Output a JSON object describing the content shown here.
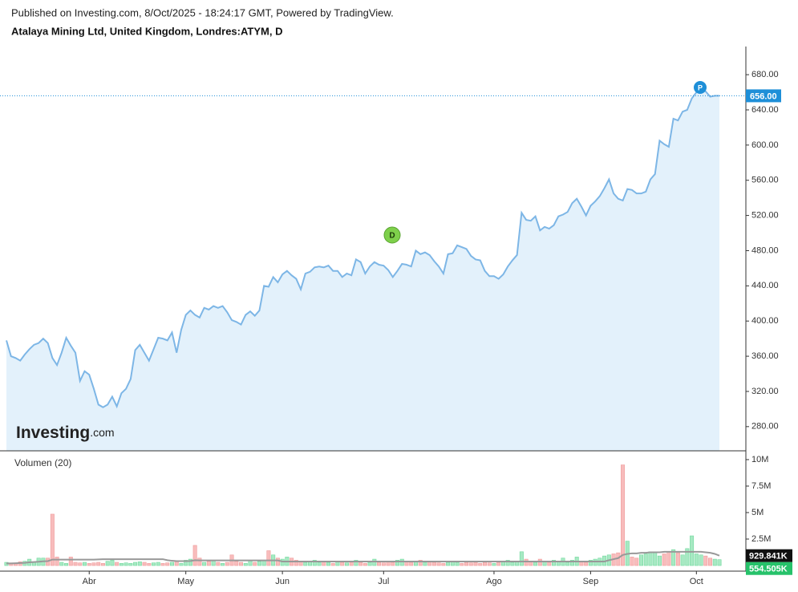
{
  "header": {
    "published": "Published on Investing.com, 8/Oct/2025 - 18:24:17 GMT, Powered by TradingView.",
    "title": "Atalaya Mining Ltd, United Kingdom, Londres:ATYM, D"
  },
  "logo": {
    "brand": "Investing",
    "suffix": ".com"
  },
  "markers": [
    {
      "label": "D",
      "color": "#7ed04b"
    },
    {
      "label": "P",
      "color": "#1e8fd8"
    }
  ],
  "chart_data": {
    "type": "area",
    "color": "#7db6e6",
    "fill": "#e3f1fb",
    "categories": [
      null,
      null,
      null,
      null,
      null,
      null,
      null,
      null,
      null,
      null,
      null,
      null,
      null,
      null,
      null,
      null,
      null,
      null,
      "Abr",
      null,
      null,
      null,
      null,
      null,
      null,
      null,
      null,
      null,
      null,
      null,
      null,
      null,
      null,
      null,
      null,
      null,
      null,
      null,
      null,
      "May",
      null,
      null,
      null,
      null,
      null,
      null,
      null,
      null,
      null,
      null,
      null,
      null,
      null,
      null,
      null,
      null,
      null,
      null,
      null,
      null,
      "Jun",
      null,
      null,
      null,
      null,
      null,
      null,
      null,
      null,
      null,
      null,
      null,
      null,
      null,
      null,
      null,
      null,
      null,
      null,
      null,
      null,
      null,
      "Jul",
      null,
      null,
      null,
      null,
      null,
      null,
      null,
      null,
      null,
      null,
      null,
      null,
      null,
      null,
      null,
      null,
      null,
      null,
      null,
      null,
      null,
      null,
      null,
      "Ago",
      null,
      null,
      null,
      null,
      null,
      null,
      null,
      null,
      null,
      null,
      null,
      null,
      null,
      null,
      null,
      null,
      null,
      null,
      null,
      null,
      "Sep",
      null,
      null,
      null,
      null,
      null,
      null,
      null,
      null,
      null,
      null,
      null,
      null,
      null,
      null,
      null,
      null,
      null,
      null,
      null,
      null,
      null,
      null,
      "Oct",
      null,
      null,
      null,
      null,
      null
    ],
    "values": [
      378,
      360,
      358,
      355,
      362,
      368,
      373,
      375,
      380,
      375,
      358,
      350,
      364,
      381,
      372,
      364,
      332,
      343,
      339,
      323,
      305,
      302,
      305,
      314,
      303,
      318,
      323,
      334,
      367,
      373,
      364,
      355,
      368,
      381,
      380,
      378,
      387,
      364,
      390,
      407,
      412,
      407,
      404,
      415,
      413,
      417,
      415,
      417,
      410,
      401,
      399,
      396,
      407,
      411,
      406,
      412,
      440,
      439,
      450,
      444,
      453,
      457,
      452,
      448,
      436,
      454,
      456,
      461,
      462,
      461,
      463,
      457,
      457,
      450,
      454,
      452,
      470,
      467,
      454,
      462,
      467,
      464,
      463,
      458,
      450,
      457,
      465,
      464,
      462,
      480,
      476,
      478,
      475,
      468,
      462,
      454,
      476,
      477,
      486,
      484,
      482,
      474,
      470,
      469,
      457,
      451,
      451,
      448,
      453,
      462,
      469,
      475,
      523,
      515,
      514,
      519,
      503,
      507,
      505,
      509,
      519,
      521,
      524,
      534,
      539,
      530,
      520,
      531,
      536,
      542,
      551,
      561,
      545,
      539,
      537,
      550,
      549,
      545,
      545,
      547,
      561,
      567,
      605,
      601,
      598,
      630,
      628,
      638,
      640,
      653,
      660,
      664,
      661,
      655,
      656,
      656
    ],
    "last_label": "656.00",
    "last_color": "#1e8fd8",
    "ylim": [
      252.5,
      712
    ],
    "yticks": [
      {
        "value": 680,
        "label": "680.00"
      },
      {
        "value": 640,
        "label": "640.00"
      },
      {
        "value": 600,
        "label": "600.00"
      },
      {
        "value": 560,
        "label": "560.00"
      },
      {
        "value": 520,
        "label": "520.00"
      },
      {
        "value": 480,
        "label": "480.00"
      },
      {
        "value": 440,
        "label": "440.00"
      },
      {
        "value": 400,
        "label": "400.00"
      },
      {
        "value": 360,
        "label": "360.00"
      },
      {
        "value": 320,
        "label": "320.00"
      },
      {
        "value": 280,
        "label": "280.00"
      }
    ],
    "volume": {
      "title": "Volumen (20)",
      "up_color": "#a7e9c3",
      "down_color": "#f8bcbc",
      "values": [
        300000,
        250000,
        200000,
        350000,
        400000,
        600000,
        300000,
        700000,
        700000,
        700000,
        4850000,
        800000,
        300000,
        200000,
        800000,
        300000,
        250000,
        300000,
        200000,
        250000,
        300000,
        200000,
        400000,
        500000,
        300000,
        200000,
        250000,
        200000,
        300000,
        350000,
        300000,
        200000,
        250000,
        300000,
        200000,
        250000,
        300000,
        400000,
        200000,
        500000,
        600000,
        1900000,
        700000,
        300000,
        400000,
        500000,
        300000,
        200000,
        300000,
        1000000,
        400000,
        300000,
        200000,
        500000,
        300000,
        400000,
        500000,
        1400000,
        1000000,
        700000,
        600000,
        800000,
        700000,
        500000,
        400000,
        300000,
        400000,
        500000,
        300000,
        400000,
        300000,
        200000,
        400000,
        300000,
        250000,
        300000,
        500000,
        300000,
        200000,
        300000,
        600000,
        300000,
        250000,
        400000,
        300000,
        500000,
        600000,
        400000,
        300000,
        400000,
        500000,
        300000,
        400000,
        300000,
        250000,
        200000,
        300000,
        400000,
        300000,
        200000,
        300000,
        250000,
        300000,
        200000,
        300000,
        250000,
        200000,
        300000,
        400000,
        500000,
        300000,
        400000,
        1300000,
        600000,
        400000,
        300000,
        600000,
        400000,
        300000,
        500000,
        400000,
        700000,
        300000,
        500000,
        800000,
        400000,
        300000,
        500000,
        600000,
        700000,
        900000,
        1000000,
        1100000,
        1200000,
        9500000,
        2300000,
        800000,
        700000,
        1000000,
        1100000,
        1300000,
        1200000,
        900000,
        1100000,
        1300000,
        1500000,
        1200000,
        1000000,
        1600000,
        2800000,
        1100000,
        1000000,
        900000,
        700000,
        600000,
        554505
      ],
      "last_label": "554.505K",
      "last_color": "#26c26a",
      "ma": {
        "color": "#999999",
        "label_color": "#111111",
        "last_label": "929.841K",
        "values": [
          200000,
          200000,
          220000,
          240000,
          260000,
          300000,
          330000,
          360000,
          400000,
          420000,
          560000,
          560000,
          560000,
          560000,
          560000,
          560000,
          560000,
          560000,
          560000,
          560000,
          580000,
          600000,
          600000,
          600000,
          600000,
          600000,
          600000,
          600000,
          600000,
          600000,
          600000,
          600000,
          600000,
          600000,
          600000,
          500000,
          450000,
          420000,
          420000,
          420000,
          430000,
          500000,
          480000,
          480000,
          480000,
          480000,
          480000,
          480000,
          480000,
          480000,
          480000,
          480000,
          480000,
          480000,
          480000,
          480000,
          480000,
          480000,
          480000,
          480000,
          380000,
          380000,
          380000,
          380000,
          380000,
          380000,
          380000,
          380000,
          380000,
          380000,
          380000,
          380000,
          380000,
          380000,
          380000,
          380000,
          380000,
          380000,
          380000,
          380000,
          380000,
          380000,
          380000,
          380000,
          380000,
          380000,
          380000,
          380000,
          380000,
          380000,
          380000,
          380000,
          380000,
          380000,
          380000,
          380000,
          380000,
          380000,
          380000,
          380000,
          380000,
          380000,
          380000,
          380000,
          380000,
          380000,
          380000,
          380000,
          380000,
          380000,
          380000,
          380000,
          380000,
          380000,
          380000,
          380000,
          380000,
          380000,
          380000,
          380000,
          380000,
          380000,
          380000,
          380000,
          380000,
          380000,
          380000,
          380000,
          380000,
          380000,
          380000,
          500000,
          600000,
          700000,
          1000000,
          1100000,
          1150000,
          1150000,
          1200000,
          1200000,
          1250000,
          1250000,
          1250000,
          1300000,
          1300000,
          1300000,
          1300000,
          1300000,
          1300000,
          1300000,
          1300000,
          1300000,
          1250000,
          1200000,
          1100000,
          929841
        ]
      },
      "ylim": [
        -530000,
        10830000
      ],
      "yticks": [
        {
          "value": 10000000,
          "label": "10M"
        },
        {
          "value": 7500000,
          "label": "7.5M"
        },
        {
          "value": 5000000,
          "label": "5M"
        },
        {
          "value": 2500000,
          "label": "2.5M"
        }
      ]
    }
  }
}
